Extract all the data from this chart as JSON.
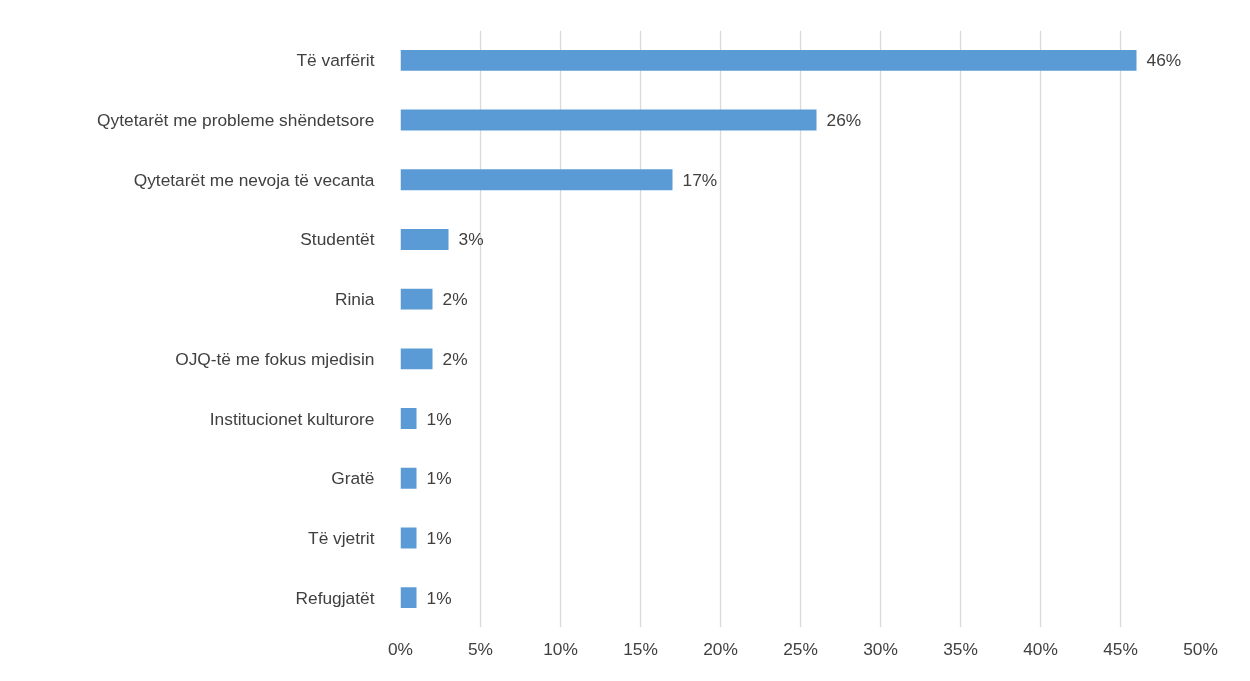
{
  "chart_data": {
    "type": "bar",
    "orientation": "horizontal",
    "categories": [
      "Të varfërit",
      "Qytetarët me probleme shëndetsore",
      "Qytetarët me nevoja të vecanta",
      "Studentët",
      "Rinia",
      "OJQ-të me fokus mjedisin",
      "Institucionet kulturore",
      "Gratë",
      "Të vjetrit",
      "Refugjatët"
    ],
    "values": [
      46,
      26,
      17,
      3,
      2,
      2,
      1,
      1,
      1,
      1
    ],
    "value_labels": [
      "46%",
      "26%",
      "17%",
      "3%",
      "2%",
      "2%",
      "1%",
      "1%",
      "1%",
      "1%"
    ],
    "color": "#5b9bd5",
    "xlim": [
      0,
      50
    ],
    "xticks": [
      {
        "value": 0,
        "label": "0%"
      },
      {
        "value": 5,
        "label": "5%"
      },
      {
        "value": 10,
        "label": "10%"
      },
      {
        "value": 15,
        "label": "15%"
      },
      {
        "value": 20,
        "label": "20%"
      },
      {
        "value": 25,
        "label": "25%"
      },
      {
        "value": 30,
        "label": "30%"
      },
      {
        "value": 35,
        "label": "35%"
      },
      {
        "value": 40,
        "label": "40%"
      },
      {
        "value": 45,
        "label": "45%"
      },
      {
        "value": 50,
        "label": "50%"
      }
    ],
    "grid": "x"
  }
}
